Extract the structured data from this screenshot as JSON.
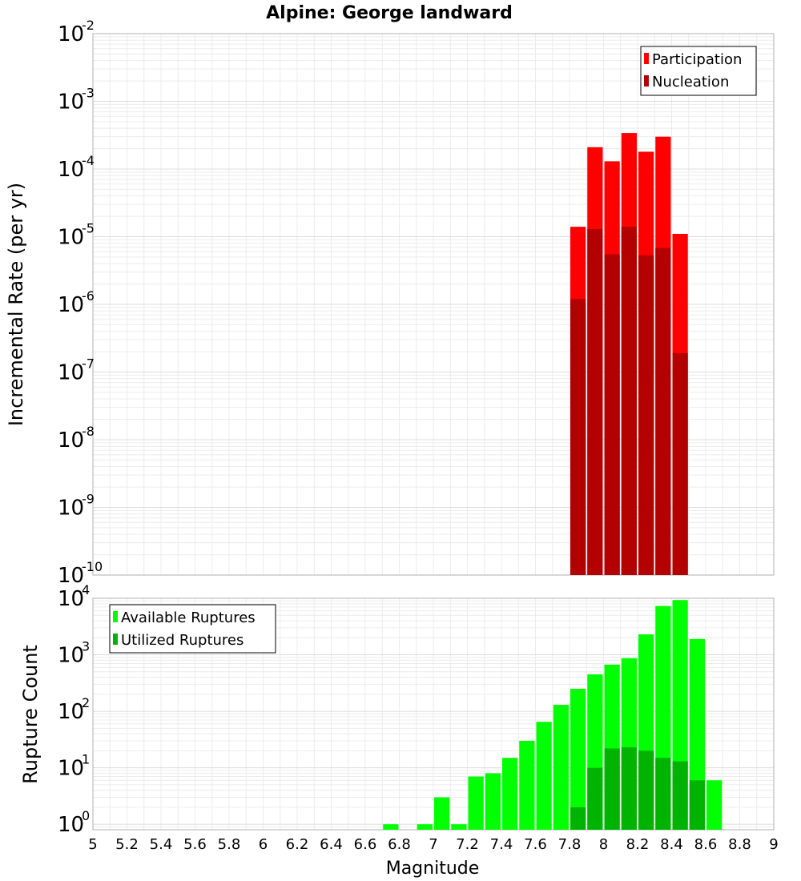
{
  "chart_data": [
    {
      "type": "bar",
      "title": "Alpine: George landward",
      "ylabel": "Incremental Rate (per yr)",
      "xlabel": "",
      "y_scale": "log",
      "ylim": [
        1e-10,
        0.01
      ],
      "xlim": [
        5,
        9
      ],
      "y_tick_labels": [
        {
          "base": "10",
          "exp": "-10"
        },
        {
          "base": "10",
          "exp": "-9"
        },
        {
          "base": "10",
          "exp": "-8"
        },
        {
          "base": "10",
          "exp": "-7"
        },
        {
          "base": "10",
          "exp": "-6"
        },
        {
          "base": "10",
          "exp": "-5"
        },
        {
          "base": "10",
          "exp": "-4"
        },
        {
          "base": "10",
          "exp": "-3"
        },
        {
          "base": "10",
          "exp": "-2"
        }
      ],
      "y_tick_exponents": [
        -10,
        -9,
        -8,
        -7,
        -6,
        -5,
        -4,
        -3,
        -2
      ],
      "grid": true,
      "legend_position": "top-right",
      "bin_width": 0.1,
      "series": [
        {
          "name": "Participation",
          "color": "#ff0000",
          "x": [
            7.85,
            7.95,
            8.05,
            8.15,
            8.25,
            8.35,
            8.45
          ],
          "values": [
            1.4e-05,
            0.00021,
            0.00013,
            0.00034,
            0.00018,
            0.0003,
            1.1e-05
          ]
        },
        {
          "name": "Nucleation",
          "color": "#b30000",
          "x": [
            7.85,
            7.95,
            8.05,
            8.15,
            8.25,
            8.35,
            8.45
          ],
          "values": [
            1.2e-06,
            1.3e-05,
            5.5e-06,
            1.4e-05,
            5.3e-06,
            6.8e-06,
            1.9e-07
          ]
        }
      ]
    },
    {
      "type": "bar",
      "title": "",
      "ylabel": "Rupture Count",
      "xlabel": "Magnitude",
      "y_scale": "log",
      "ylim": [
        0.8,
        10000
      ],
      "xlim": [
        5,
        9
      ],
      "x_ticks": [
        "5",
        "5.2",
        "5.4",
        "5.6",
        "5.8",
        "6",
        "6.2",
        "6.4",
        "6.6",
        "6.8",
        "7",
        "7.2",
        "7.4",
        "7.6",
        "7.8",
        "8",
        "8.2",
        "8.4",
        "8.6",
        "8.8",
        "9"
      ],
      "y_tick_labels": [
        {
          "base": "10",
          "exp": "0"
        },
        {
          "base": "10",
          "exp": "1"
        },
        {
          "base": "10",
          "exp": "2"
        },
        {
          "base": "10",
          "exp": "3"
        },
        {
          "base": "10",
          "exp": "4"
        }
      ],
      "y_tick_exponents": [
        0,
        1,
        2,
        3,
        4
      ],
      "grid": true,
      "legend_position": "top-left",
      "bin_width": 0.1,
      "series": [
        {
          "name": "Available Ruptures",
          "color": "#00ff00",
          "x": [
            6.75,
            6.95,
            7.05,
            7.15,
            7.25,
            7.35,
            7.45,
            7.55,
            7.65,
            7.75,
            7.85,
            7.95,
            8.05,
            8.15,
            8.25,
            8.35,
            8.45,
            8.55,
            8.65
          ],
          "values": [
            1,
            1,
            3,
            1,
            7,
            8,
            15,
            30,
            65,
            130,
            250,
            450,
            670,
            870,
            2300,
            7300,
            9300,
            1900,
            6
          ]
        },
        {
          "name": "Utilized Ruptures",
          "color": "#00b300",
          "x": [
            7.85,
            7.95,
            8.05,
            8.15,
            8.25,
            8.35,
            8.45,
            8.55
          ],
          "values": [
            2,
            10,
            22,
            23,
            20,
            15,
            13,
            6
          ]
        }
      ]
    }
  ]
}
